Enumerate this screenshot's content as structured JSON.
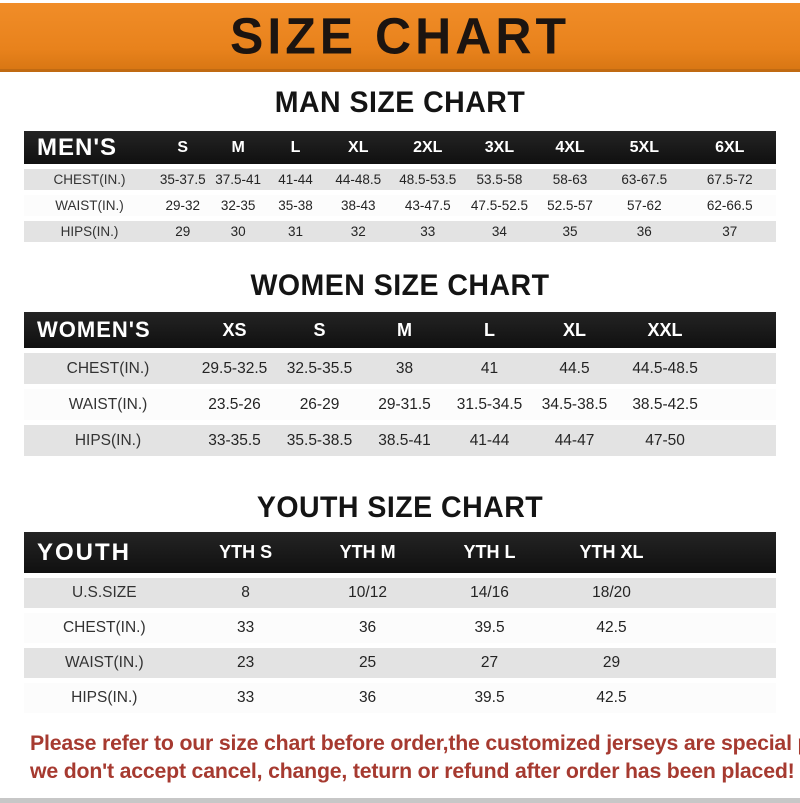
{
  "banner": {
    "title": "SIZE CHART"
  },
  "sections": [
    {
      "id": "men",
      "title": "MAN SIZE CHART",
      "header_label": "MEN'S",
      "columns": [
        "S",
        "M",
        "L",
        "XL",
        "2XL",
        "3XL",
        "4XL",
        "5XL",
        "6XL"
      ],
      "filler": false,
      "rows": [
        {
          "label": "CHEST(IN.)",
          "values": [
            "35-37.5",
            "37.5-41",
            "41-44",
            "44-48.5",
            "48.5-53.5",
            "53.5-58",
            "58-63",
            "63-67.5",
            "67.5-72"
          ]
        },
        {
          "label": "WAIST(IN.)",
          "values": [
            "29-32",
            "32-35",
            "35-38",
            "38-43",
            "43-47.5",
            "47.5-52.5",
            "52.5-57",
            "57-62",
            "62-66.5"
          ]
        },
        {
          "label": "HIPS(IN.)",
          "values": [
            "29",
            "30",
            "31",
            "32",
            "33",
            "34",
            "35",
            "36",
            "37"
          ]
        }
      ]
    },
    {
      "id": "women",
      "title": "WOMEN SIZE CHART",
      "header_label": "WOMEN'S",
      "columns": [
        "XS",
        "S",
        "M",
        "L",
        "XL",
        "XXL"
      ],
      "filler": true,
      "rows": [
        {
          "label": "CHEST(IN.)",
          "values": [
            "29.5-32.5",
            "32.5-35.5",
            "38",
            "41",
            "44.5",
            "44.5-48.5"
          ]
        },
        {
          "label": "WAIST(IN.)",
          "values": [
            "23.5-26",
            "26-29",
            "29-31.5",
            "31.5-34.5",
            "34.5-38.5",
            "38.5-42.5"
          ]
        },
        {
          "label": "HIPS(IN.)",
          "values": [
            "33-35.5",
            "35.5-38.5",
            "38.5-41",
            "41-44",
            "44-47",
            "47-50"
          ]
        }
      ]
    },
    {
      "id": "youth",
      "title": "YOUTH SIZE CHART",
      "header_label": "YOUTH",
      "columns": [
        "YTH S",
        "YTH M",
        "YTH L",
        "YTH XL"
      ],
      "filler": true,
      "rows": [
        {
          "label": "U.S.SIZE",
          "values": [
            "8",
            "10/12",
            "14/16",
            "18/20"
          ]
        },
        {
          "label": "CHEST(IN.)",
          "values": [
            "33",
            "36",
            "39.5",
            "42.5"
          ]
        },
        {
          "label": "WAIST(IN.)",
          "values": [
            "23",
            "25",
            "27",
            "29"
          ]
        },
        {
          "label": "HIPS(IN.)",
          "values": [
            "33",
            "36",
            "39.5",
            "42.5"
          ]
        }
      ]
    }
  ],
  "footer": {
    "line1": "Please refer to our size chart before order,the customized jerseys are special products,",
    "line2": "we don't accept cancel, change, teturn or refund after order has been placed!"
  },
  "colors": {
    "banner_orange": "#E8821C",
    "bar_black": "#161616",
    "stripe_gray": "#E3E3E3",
    "row_white": "#FCFCFC",
    "footer_red": "#A63A30"
  }
}
